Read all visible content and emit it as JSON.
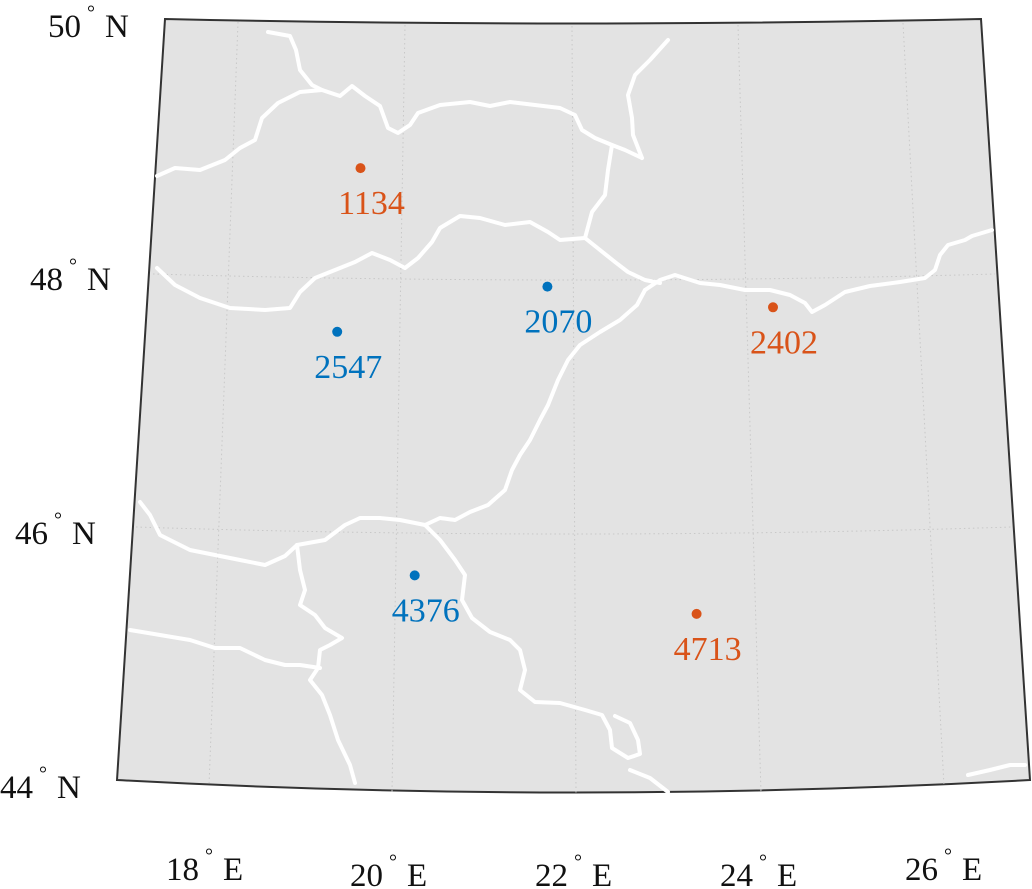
{
  "map": {
    "colors": {
      "land": "#e3e3e3",
      "frame": "#333333",
      "borders": "#ffffff",
      "graticule": "#c8c8c8",
      "text": "#111111",
      "blue": "#0072bd",
      "orange": "#d95319"
    },
    "lat_labels": [
      {
        "deg": "50",
        "hemi": "N"
      },
      {
        "deg": "48",
        "hemi": "N"
      },
      {
        "deg": "46",
        "hemi": "N"
      },
      {
        "deg": "44",
        "hemi": "N"
      }
    ],
    "lon_labels": [
      {
        "deg": "18",
        "hemi": "E"
      },
      {
        "deg": "20",
        "hemi": "E"
      },
      {
        "deg": "22",
        "hemi": "E"
      },
      {
        "deg": "24",
        "hemi": "E"
      },
      {
        "deg": "26",
        "hemi": "E"
      }
    ],
    "points": [
      {
        "label": "1134",
        "color": "orange",
        "lon": 19.5,
        "lat": 48.8
      },
      {
        "label": "2070",
        "color": "blue",
        "lon": 21.8,
        "lat": 47.9
      },
      {
        "label": "2547",
        "color": "blue",
        "lon": 19.3,
        "lat": 47.5
      },
      {
        "label": "2402",
        "color": "orange",
        "lon": 24.5,
        "lat": 47.7
      },
      {
        "label": "4376",
        "color": "blue",
        "lon": 20.3,
        "lat": 45.6
      },
      {
        "label": "4713",
        "color": "orange",
        "lon": 23.5,
        "lat": 45.3
      }
    ]
  }
}
